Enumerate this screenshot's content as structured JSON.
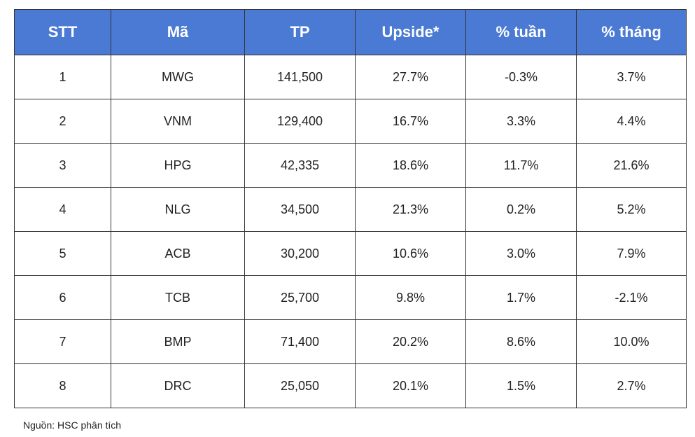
{
  "table": {
    "headers": [
      "STT",
      "Mã",
      "TP",
      "Upside*",
      "% tuần",
      "% tháng"
    ],
    "rows": [
      [
        "1",
        "MWG",
        "141,500",
        "27.7%",
        "-0.3%",
        "3.7%"
      ],
      [
        "2",
        "VNM",
        "129,400",
        "16.7%",
        "3.3%",
        "4.4%"
      ],
      [
        "3",
        "HPG",
        "42,335",
        "18.6%",
        "11.7%",
        "21.6%"
      ],
      [
        "4",
        "NLG",
        "34,500",
        "21.3%",
        "0.2%",
        "5.2%"
      ],
      [
        "5",
        "ACB",
        "30,200",
        "10.6%",
        "3.0%",
        "7.9%"
      ],
      [
        "6",
        "TCB",
        "25,700",
        "9.8%",
        "1.7%",
        "-2.1%"
      ],
      [
        "7",
        "BMP",
        "71,400",
        "20.2%",
        "8.6%",
        "10.0%"
      ],
      [
        "8",
        "DRC",
        "25,050",
        "20.1%",
        "1.5%",
        "2.7%"
      ]
    ]
  },
  "footer": {
    "source": "Nguồn: HSC phân tích"
  }
}
